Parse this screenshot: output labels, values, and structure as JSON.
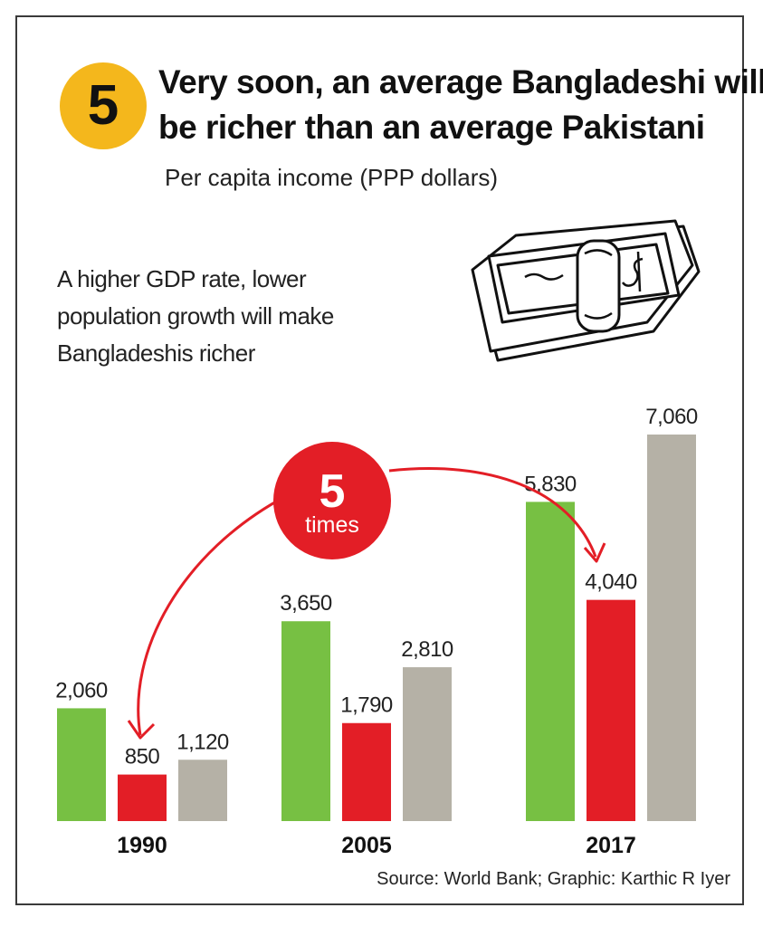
{
  "header": {
    "badge_number": "5",
    "title_line1": "Very soon, an average Bangladeshi will",
    "title_line2": "be richer than an average Pakistani",
    "subtitle": "Per capita income (PPP dollars)",
    "note": "A higher GDP rate, lower population growth will make Bangladeshis richer"
  },
  "callout": {
    "number": "5",
    "label": "times"
  },
  "source": "Source: World Bank; Graphic: Karthic R Iyer",
  "colors": {
    "series1": "#77c043",
    "series2": "#e31e26",
    "series3": "#b5b1a6",
    "badge": "#f4b71c"
  },
  "icons": {
    "illustration": "money-bundle-icon"
  },
  "chart_data": {
    "type": "bar",
    "categories": [
      "1990",
      "2005",
      "2017"
    ],
    "series": [
      {
        "values": [
          2060,
          3650,
          5830
        ],
        "labels": [
          "2,060",
          "3,650",
          "5,830"
        ],
        "color": "#77c043"
      },
      {
        "values": [
          850,
          1790,
          4040
        ],
        "labels": [
          "850",
          "1,790",
          "4,040"
        ],
        "color": "#e31e26"
      },
      {
        "values": [
          1120,
          2810,
          7060
        ],
        "labels": [
          "1,120",
          "2,810",
          "7,060"
        ],
        "color": "#b5b1a6"
      }
    ],
    "title": "",
    "xlabel": "",
    "ylabel": "",
    "ylim": [
      0,
      7060
    ],
    "grid": false,
    "legend": "none"
  }
}
